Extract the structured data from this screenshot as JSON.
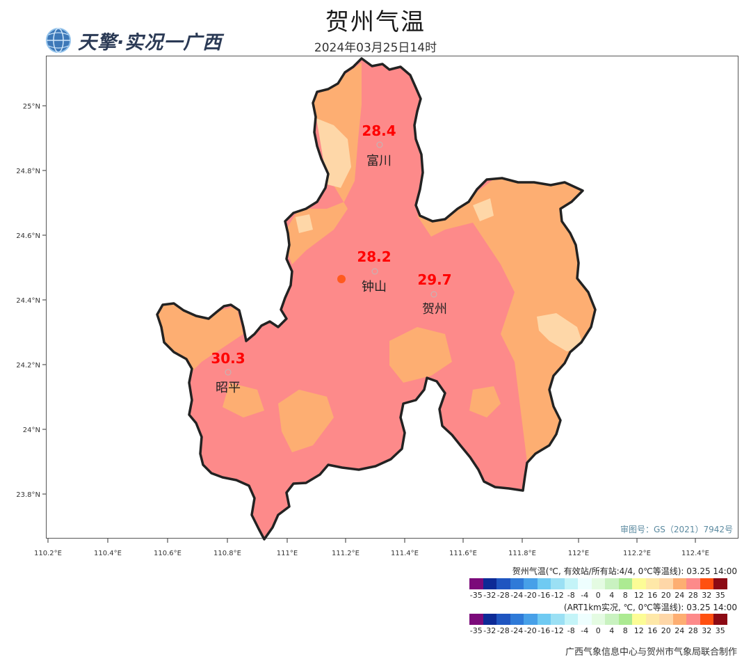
{
  "header": {
    "title": "贺州气温",
    "subtitle": "2024年03月25日14时",
    "logo_text": "天擎·实况一广西"
  },
  "map": {
    "lat_labels": [
      "25°N",
      "24.8°N",
      "24.6°N",
      "24.4°N",
      "24.2°N",
      "24°N",
      "23.8°N"
    ],
    "lon_labels": [
      "110.2°E",
      "110.4°E",
      "110.6°E",
      "110.8°E",
      "111°E",
      "111.2°E",
      "111.4°E",
      "111.6°E",
      "111.8°E",
      "112°E",
      "112.2°E",
      "112.4°E"
    ],
    "stations": [
      {
        "name": "富川",
        "value": "28.4"
      },
      {
        "name": "钟山",
        "value": "28.2"
      },
      {
        "name": "贺州",
        "value": "29.7"
      },
      {
        "name": "昭平",
        "value": "30.3"
      }
    ],
    "approval": "审图号：GS（2021）7942号",
    "colors": {
      "warm": "#fd8a8a",
      "mid": "#fdae72",
      "light": "#fed7a8",
      "border": "#222222",
      "hot": "#ff5a1e"
    }
  },
  "legend": {
    "title1": "贺州气温(℃, 有效站/所有站:4/4, 0℃等温线): 03.25 14:00",
    "title2": "(ART1km实况, ℃, 0℃等温线): 03.25 14:00",
    "colors": [
      "#7b0a7a",
      "#0d2a96",
      "#1f55c0",
      "#2f7ad8",
      "#47a0e8",
      "#6fcaf2",
      "#9be0f4",
      "#c4f4f8",
      "#eefefe",
      "#e4fbe2",
      "#c9f2c0",
      "#acea92",
      "#fcfc96",
      "#fee8a8",
      "#fed7a8",
      "#fdae72",
      "#fd8a8a",
      "#ff5010",
      "#8c0a14"
    ],
    "labels": [
      "-35",
      "-32",
      "-28",
      "-24",
      "-20",
      "-16",
      "-12",
      "-8",
      "-4",
      "0",
      "4",
      "8",
      "12",
      "16",
      "20",
      "24",
      "28",
      "32",
      "35"
    ]
  },
  "footer": {
    "credit": "广西气象信息中心与贺州市气象局联合制作"
  }
}
